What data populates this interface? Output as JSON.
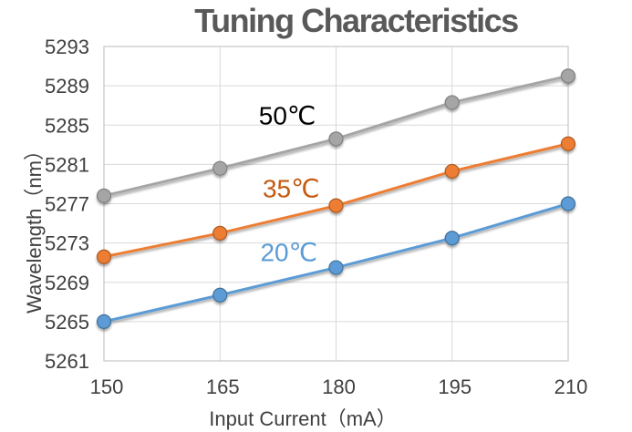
{
  "chart_data": {
    "type": "line",
    "title": "Tuning Characteristics",
    "xlabel": "Input Current（mA）",
    "ylabel": "Wavelength（nm）",
    "x": [
      150,
      165,
      180,
      195,
      210
    ],
    "xlim": [
      150,
      210
    ],
    "ylim": [
      5261,
      5293
    ],
    "yticks": [
      5261,
      5265,
      5269,
      5273,
      5277,
      5281,
      5285,
      5289,
      5293
    ],
    "grid": true,
    "legend_position": "inline-annotations",
    "series": [
      {
        "name": "20℃",
        "values": [
          5265.0,
          5267.7,
          5270.5,
          5273.5,
          5277.0
        ],
        "color": "#5B9BD5",
        "marker_edge": "#41719C"
      },
      {
        "name": "35℃",
        "values": [
          5271.6,
          5274.0,
          5276.8,
          5280.3,
          5283.1
        ],
        "color": "#ED7D31",
        "marker_edge": "#AE5A21"
      },
      {
        "name": "50℃",
        "values": [
          5277.8,
          5280.6,
          5283.6,
          5287.3,
          5290.0
        ],
        "color": "#A5A5A5",
        "marker_edge": "#7F7F7F"
      }
    ],
    "annotations": [
      {
        "text": "50℃",
        "x": 173.7,
        "y": 5286.0,
        "color": "#000000"
      },
      {
        "text": "35℃",
        "x": 174.2,
        "y": 5278.6,
        "color": "#C55A11"
      },
      {
        "text": "20℃",
        "x": 173.9,
        "y": 5272.1,
        "color": "#5B9BD5"
      }
    ],
    "colors": {
      "title": "#595959",
      "axis_text": "#404040",
      "gridline": "#D9D9D9",
      "plot_border": "#C6C6C6"
    }
  }
}
